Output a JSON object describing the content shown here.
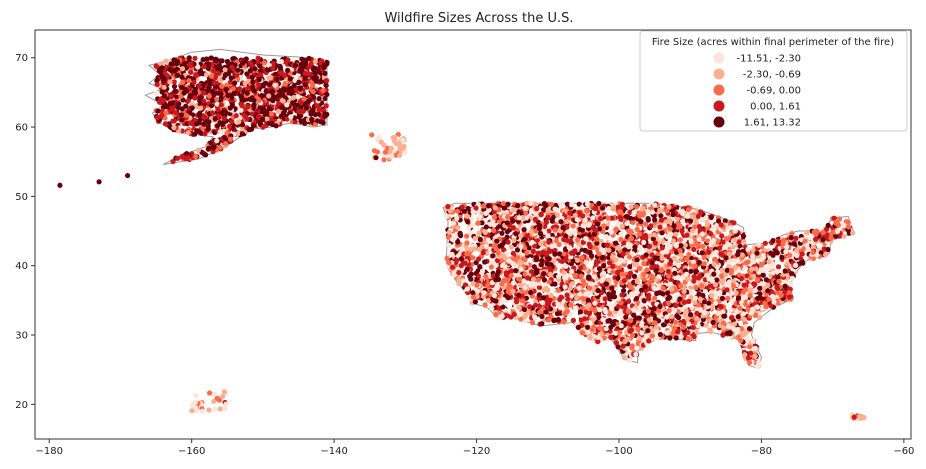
{
  "chart_data": {
    "type": "scatter",
    "title": "Wildfire Sizes Across the U.S.",
    "xlabel": "",
    "ylabel": "",
    "xlim": [
      -182,
      -59
    ],
    "ylim": [
      15,
      74
    ],
    "x_ticks": [
      -180,
      -160,
      -140,
      -120,
      -100,
      -80,
      -60
    ],
    "y_ticks": [
      20,
      30,
      40,
      50,
      60,
      70
    ],
    "grid": false,
    "legend": {
      "title": "Fire Size (acres within final perimeter of the fire)",
      "placement": "top-right",
      "classes": [
        {
          "label": "-11.51,  -2.30",
          "color": "#fee5d9"
        },
        {
          "label": "-2.30,  -0.69",
          "color": "#fcae91"
        },
        {
          "label": "-0.69,   0.00",
          "color": "#fb6a4a"
        },
        {
          "label": "0.00,   1.61",
          "color": "#cb181d"
        },
        {
          "label": "1.61,  13.32",
          "color": "#67000d"
        }
      ]
    },
    "regions": [
      {
        "name": "Alaska",
        "lon_range": [
          -165,
          -141
        ],
        "lat_range": [
          55,
          70
        ]
      },
      {
        "name": "Alaska Panhandle",
        "lon_range": [
          -135,
          -130
        ],
        "lat_range": [
          55,
          59
        ]
      },
      {
        "name": "Contiguous U.S.",
        "lon_range": [
          -124.5,
          -67
        ],
        "lat_range": [
          25,
          49
        ]
      },
      {
        "name": "Hawaii",
        "lon_range": [
          -160,
          -155
        ],
        "lat_range": [
          19,
          22.2
        ]
      },
      {
        "name": "Puerto Rico",
        "lon_range": [
          -67.3,
          -65.6
        ],
        "lat_range": [
          17.9,
          18.5
        ]
      }
    ],
    "notable_points": [
      {
        "x": -178.5,
        "y": 51.6,
        "class": 4
      },
      {
        "x": -173,
        "y": 52.1,
        "class": 4
      },
      {
        "x": -169,
        "y": 53,
        "class": 4
      }
    ]
  }
}
